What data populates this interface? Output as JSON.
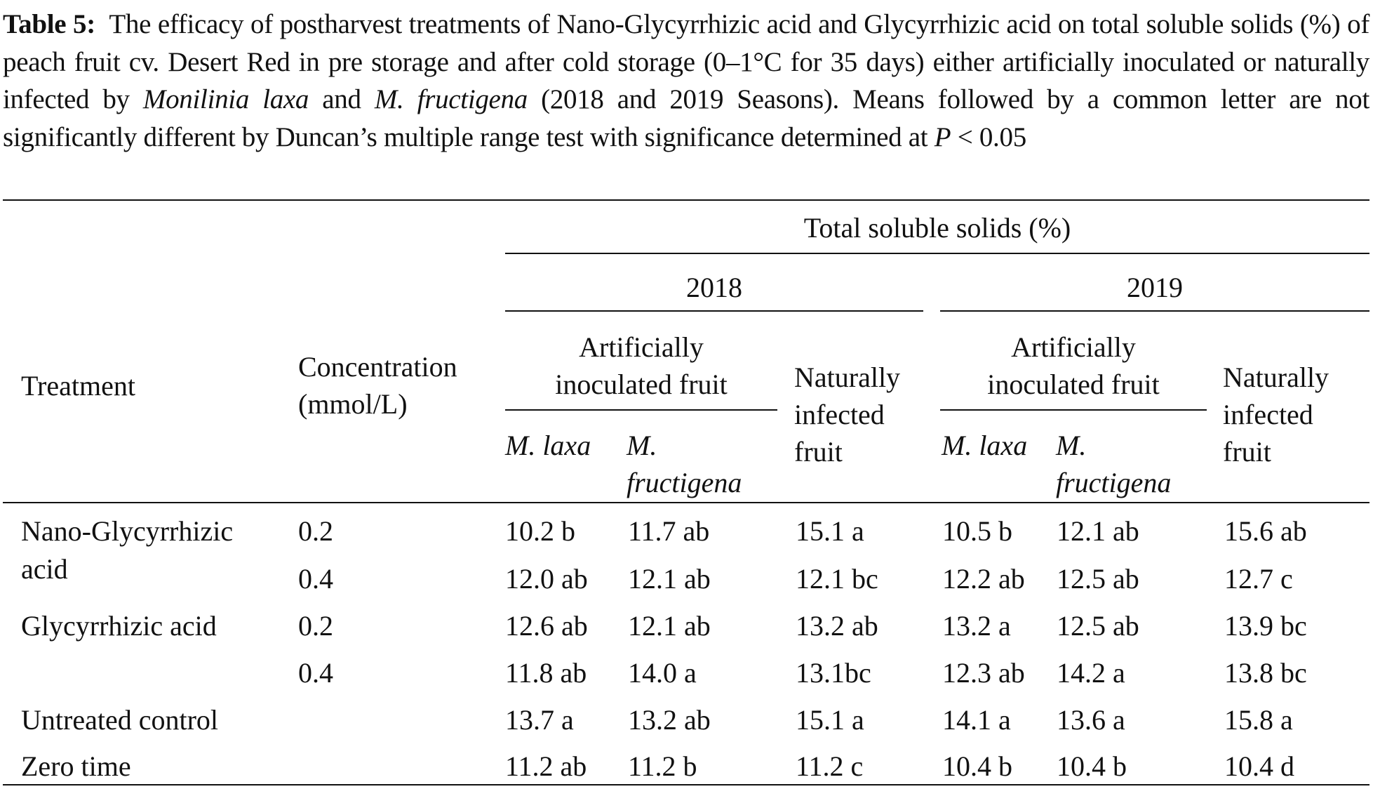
{
  "caption": {
    "label": "Table 5:",
    "text_1": "The efficacy of postharvest treatments of Nano-Glycyrrhizic acid and Glycyrrhizic acid on total soluble solids (%) of peach fruit cv. Desert Red in pre storage and after cold storage (0–1°C for 35 days) either artificially inoculated or naturally infected by ",
    "species_1": "Monilinia laxa",
    "text_2": " and ",
    "species_2": "M. fructigena",
    "text_3": " (2018 and 2019 Seasons). Means followed by a common letter are not significantly different by Duncan’s multiple range test with significance determined at ",
    "p_symbol": "P",
    "text_4": " < 0.05"
  },
  "table": {
    "header": {
      "treatment": "Treatment",
      "concentration_line1": "Concentration",
      "concentration_line2": "(mmol/L)",
      "tss": "Total soluble solids (%)",
      "year_2018": "2018",
      "year_2019": "2019",
      "artificial_line1": "Artificially",
      "artificial_line2": "inoculated fruit",
      "natural_line1": "Naturally",
      "natural_line2": "infected",
      "natural_line3": "fruit",
      "m_laxa": "M. laxa",
      "m_fructigena_line1": "M.",
      "m_fructigena_line2": "fructigena"
    },
    "rows": [
      {
        "treatment_line1": "Nano-Glycyrrhizic",
        "treatment_line2": "acid",
        "concentration": "0.2",
        "values": [
          "10.2 b",
          "11.7 ab",
          "15.1 a",
          "10.5 b",
          "12.1 ab",
          "15.6 ab"
        ]
      },
      {
        "treatment_line1": "",
        "treatment_line2": "",
        "concentration": "0.4",
        "values": [
          "12.0 ab",
          "12.1 ab",
          "12.1 bc",
          "12.2 ab",
          "12.5 ab",
          "12.7 c"
        ]
      },
      {
        "treatment_line1": "Glycyrrhizic acid",
        "treatment_line2": "",
        "concentration": "0.2",
        "values": [
          "12.6 ab",
          "12.1 ab",
          "13.2 ab",
          "13.2 a",
          "12.5 ab",
          "13.9 bc"
        ]
      },
      {
        "treatment_line1": "",
        "treatment_line2": "",
        "concentration": "0.4",
        "values": [
          "11.8 ab",
          "14.0 a",
          "13.1bc",
          "12.3 ab",
          "14.2 a",
          "13.8 bc"
        ]
      },
      {
        "treatment_line1": "Untreated control",
        "treatment_line2": "",
        "concentration": "",
        "values": [
          "13.7 a",
          "13.2 ab",
          "15.1 a",
          "14.1 a",
          "13.6 a",
          "15.8 a"
        ]
      },
      {
        "treatment_line1": "Zero time",
        "treatment_line2": "",
        "concentration": "",
        "values": [
          "11.2 ab",
          "11.2 b",
          "11.2 c",
          "10.4 b",
          "10.4 b",
          "10.4 d"
        ]
      }
    ]
  }
}
